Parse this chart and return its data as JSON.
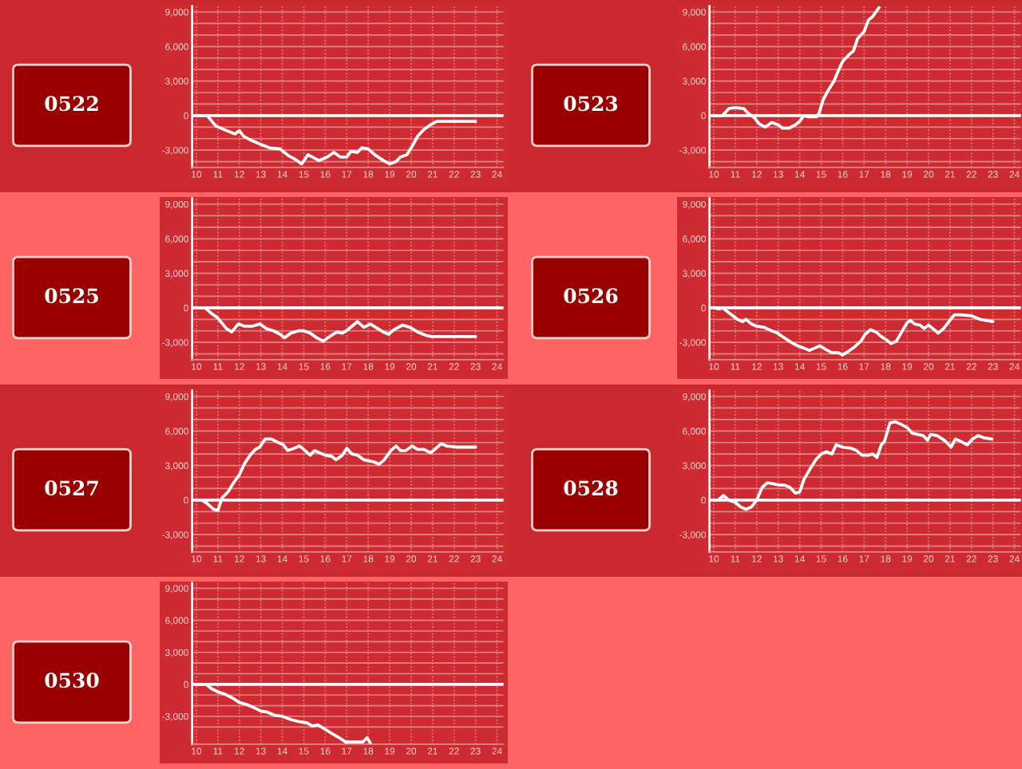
{
  "chart_data": [
    {
      "type": "line",
      "title": "0522",
      "x": [
        10,
        10.5,
        10.9,
        11.4,
        11.8,
        12.0,
        12.2,
        12.5,
        13.0,
        13.4,
        13.9,
        14.3,
        14.6,
        14.9,
        15.2,
        15.4,
        15.7,
        16.1,
        16.4,
        16.7,
        17.0,
        17.2,
        17.5,
        17.7,
        18.0,
        18.3,
        18.7,
        19.0,
        19.3,
        19.5,
        19.8,
        20.1,
        20.3,
        20.6,
        20.9,
        21.2,
        21.8,
        23.0
      ],
      "values": [
        0,
        0,
        -900,
        -1300,
        -1600,
        -1300,
        -1800,
        -2100,
        -2500,
        -2800,
        -2900,
        -3500,
        -3800,
        -4200,
        -3400,
        -3600,
        -3900,
        -3600,
        -3200,
        -3600,
        -3600,
        -3100,
        -3200,
        -2800,
        -2900,
        -3400,
        -3900,
        -4200,
        -4000,
        -3600,
        -3400,
        -2500,
        -1800,
        -1200,
        -800,
        -500,
        -500,
        -500
      ],
      "color": "#ffffff",
      "xlim": [
        9.8,
        24.3
      ],
      "xticks": [
        10,
        11,
        12,
        13,
        14,
        15,
        16,
        17,
        18,
        19,
        20,
        21,
        22,
        23,
        24
      ],
      "ylim": [
        -4500,
        9500
      ],
      "yticks": [
        {
          "value": -4000,
          "label": null
        },
        {
          "value": -3000,
          "label": "-3,000"
        },
        {
          "value": -2000,
          "label": null
        },
        {
          "value": -1000,
          "label": null
        },
        0,
        {
          "value": 1000,
          "label": null
        },
        {
          "value": 2000,
          "label": null
        },
        {
          "value": 3000,
          "label": "3,000"
        },
        {
          "value": 4000,
          "label": null
        },
        {
          "value": 5000,
          "label": null
        },
        {
          "value": 6000,
          "label": "6,000"
        },
        {
          "value": 7000,
          "label": null
        },
        {
          "value": 8000,
          "label": null
        },
        {
          "value": 9000,
          "label": "9,000"
        }
      ],
      "grid": true,
      "ref_lines": [
        {
          "axis": "y",
          "value": 0,
          "color": "#ffffff"
        }
      ]
    },
    {
      "type": "line",
      "title": "0523",
      "x": [
        10,
        10.4,
        10.7,
        11.0,
        11.4,
        11.6,
        11.9,
        12.1,
        12.4,
        12.7,
        13.0,
        13.2,
        13.5,
        13.8,
        14.0,
        14.2,
        14.4,
        14.8,
        14.9,
        15.1,
        15.3,
        15.6,
        15.8,
        16.0,
        16.3,
        16.5,
        16.7,
        17.0,
        17.2,
        17.4,
        17.7
      ],
      "values": [
        0,
        0,
        600,
        700,
        600,
        200,
        -200,
        -700,
        -1000,
        -600,
        -800,
        -1100,
        -1100,
        -800,
        -500,
        0,
        -100,
        -100,
        200,
        1400,
        2100,
        3000,
        3900,
        4700,
        5300,
        5600,
        6700,
        7300,
        8300,
        8600,
        9400
      ],
      "color": "#ffffff",
      "xlim": [
        9.8,
        24.3
      ],
      "xticks": [
        10,
        11,
        12,
        13,
        14,
        15,
        16,
        17,
        18,
        19,
        20,
        21,
        22,
        23,
        24
      ],
      "ylim": [
        -4500,
        9500
      ],
      "yticks": [
        {
          "value": -4000,
          "label": null
        },
        {
          "value": -3000,
          "label": "-3,000"
        },
        {
          "value": -2000,
          "label": null
        },
        {
          "value": -1000,
          "label": null
        },
        0,
        {
          "value": 1000,
          "label": null
        },
        {
          "value": 2000,
          "label": null
        },
        {
          "value": 3000,
          "label": "3,000"
        },
        {
          "value": 4000,
          "label": null
        },
        {
          "value": 5000,
          "label": null
        },
        {
          "value": 6000,
          "label": "6,000"
        },
        {
          "value": 7000,
          "label": null
        },
        {
          "value": 8000,
          "label": null
        },
        {
          "value": 9000,
          "label": "9,000"
        }
      ],
      "grid": true,
      "ref_lines": [
        {
          "axis": "y",
          "value": 0,
          "color": "#ffffff"
        }
      ]
    },
    {
      "type": "line",
      "title": "0525",
      "x": [
        10,
        10.4,
        10.65,
        11.0,
        11.4,
        11.65,
        11.95,
        12.25,
        12.6,
        12.95,
        13.25,
        13.6,
        13.9,
        14.1,
        14.4,
        14.75,
        15.0,
        15.3,
        15.6,
        15.9,
        16.2,
        16.55,
        16.8,
        17.05,
        17.5,
        17.8,
        18.1,
        18.35,
        18.7,
        18.95,
        19.2,
        19.6,
        19.95,
        20.3,
        20.7,
        20.95,
        23.0
      ],
      "values": [
        0,
        0,
        -400,
        -900,
        -1800,
        -2100,
        -1400,
        -1600,
        -1600,
        -1400,
        -1800,
        -2000,
        -2300,
        -2600,
        -2200,
        -2000,
        -2000,
        -2200,
        -2600,
        -2900,
        -2500,
        -2100,
        -2200,
        -1900,
        -1200,
        -1700,
        -1400,
        -1700,
        -2100,
        -2300,
        -1900,
        -1500,
        -1700,
        -2100,
        -2400,
        -2500,
        -2500
      ],
      "color": "#ffffff",
      "xlim": [
        9.8,
        24.3
      ],
      "xticks": [
        10,
        11,
        12,
        13,
        14,
        15,
        16,
        17,
        18,
        19,
        20,
        21,
        22,
        23,
        24
      ],
      "ylim": [
        -4500,
        9500
      ],
      "yticks": [
        {
          "value": -4000,
          "label": null
        },
        {
          "value": -3000,
          "label": "-3,000"
        },
        {
          "value": -2000,
          "label": null
        },
        {
          "value": -1000,
          "label": null
        },
        0,
        {
          "value": 1000,
          "label": null
        },
        {
          "value": 2000,
          "label": null
        },
        {
          "value": 3000,
          "label": "3,000"
        },
        {
          "value": 4000,
          "label": null
        },
        {
          "value": 5000,
          "label": null
        },
        {
          "value": 6000,
          "label": "6,000"
        },
        {
          "value": 7000,
          "label": null
        },
        {
          "value": 8000,
          "label": null
        },
        {
          "value": 9000,
          "label": "9,000"
        }
      ],
      "grid": true,
      "ref_lines": [
        {
          "axis": "y",
          "value": 0,
          "color": "#ffffff"
        }
      ]
    },
    {
      "type": "line",
      "title": "0526",
      "x": [
        10,
        10.25,
        10.4,
        10.75,
        11.1,
        11.35,
        11.5,
        11.75,
        12.0,
        12.35,
        12.7,
        12.97,
        13.2,
        13.6,
        13.9,
        14.2,
        14.45,
        14.7,
        14.95,
        15.2,
        15.5,
        15.8,
        16.0,
        16.25,
        16.55,
        16.85,
        17.05,
        17.3,
        17.55,
        17.8,
        18.05,
        18.25,
        18.5,
        18.75,
        19.0,
        19.15,
        19.35,
        19.6,
        19.8,
        20.0,
        20.2,
        20.45,
        20.7,
        20.95,
        21.2,
        21.5,
        22.0,
        22.4,
        23.0
      ],
      "values": [
        0,
        -100,
        0,
        -500,
        -1000,
        -1200,
        -1000,
        -1400,
        -1600,
        -1700,
        -2000,
        -2200,
        -2500,
        -3000,
        -3300,
        -3500,
        -3700,
        -3500,
        -3300,
        -3600,
        -3900,
        -3900,
        -4100,
        -3800,
        -3400,
        -2900,
        -2300,
        -1900,
        -2100,
        -2500,
        -2800,
        -3100,
        -2900,
        -2100,
        -1300,
        -1100,
        -1400,
        -1500,
        -1800,
        -1500,
        -1800,
        -2200,
        -1800,
        -1200,
        -600,
        -600,
        -700,
        -1000,
        -1200
      ],
      "color": "#ffffff",
      "xlim": [
        9.8,
        24.3
      ],
      "xticks": [
        10,
        11,
        12,
        13,
        14,
        15,
        16,
        17,
        18,
        19,
        20,
        21,
        22,
        23,
        24
      ],
      "ylim": [
        -4500,
        9500
      ],
      "yticks": [
        {
          "value": -4000,
          "label": null
        },
        {
          "value": -3000,
          "label": "-3,000"
        },
        {
          "value": -2000,
          "label": null
        },
        {
          "value": -1000,
          "label": null
        },
        0,
        {
          "value": 1000,
          "label": null
        },
        {
          "value": 2000,
          "label": null
        },
        {
          "value": 3000,
          "label": "3,000"
        },
        {
          "value": 4000,
          "label": null
        },
        {
          "value": 5000,
          "label": null
        },
        {
          "value": 6000,
          "label": "6,000"
        },
        {
          "value": 7000,
          "label": null
        },
        {
          "value": 8000,
          "label": null
        },
        {
          "value": 9000,
          "label": "9,000"
        }
      ],
      "grid": true,
      "ref_lines": [
        {
          "axis": "y",
          "value": 0,
          "color": "#ffffff"
        }
      ]
    },
    {
      "type": "line",
      "title": "0527",
      "x": [
        10,
        10.25,
        10.5,
        10.8,
        11.0,
        11.2,
        11.47,
        11.73,
        12.0,
        12.25,
        12.5,
        12.75,
        12.95,
        13.2,
        13.5,
        13.7,
        14.05,
        14.25,
        14.55,
        14.8,
        15.0,
        15.3,
        15.5,
        15.75,
        16.0,
        16.3,
        16.5,
        16.8,
        17.0,
        17.25,
        17.5,
        17.8,
        18.05,
        18.3,
        18.5,
        18.75,
        19.05,
        19.3,
        19.5,
        19.75,
        20.05,
        20.3,
        20.6,
        20.9,
        21.1,
        21.4,
        21.65,
        22.1,
        23.0
      ],
      "values": [
        0,
        0,
        -300,
        -800,
        -900,
        200,
        700,
        1500,
        2200,
        3200,
        3900,
        4400,
        4600,
        5300,
        5300,
        5100,
        4800,
        4300,
        4500,
        4700,
        4400,
        3900,
        4300,
        4100,
        3900,
        3800,
        3500,
        3900,
        4500,
        4000,
        3900,
        3500,
        3400,
        3300,
        3100,
        3500,
        4300,
        4700,
        4300,
        4300,
        4700,
        4400,
        4400,
        4100,
        4400,
        4900,
        4700,
        4600,
        4600
      ],
      "color": "#ffffff",
      "xlim": [
        9.8,
        24.3
      ],
      "xticks": [
        10,
        11,
        12,
        13,
        14,
        15,
        16,
        17,
        18,
        19,
        20,
        21,
        22,
        23,
        24
      ],
      "ylim": [
        -4500,
        9500
      ],
      "yticks": [
        {
          "value": -4000,
          "label": null
        },
        {
          "value": -3000,
          "label": "-3,000"
        },
        {
          "value": -2000,
          "label": null
        },
        {
          "value": -1000,
          "label": null
        },
        0,
        {
          "value": 1000,
          "label": null
        },
        {
          "value": 2000,
          "label": null
        },
        {
          "value": 3000,
          "label": "3,000"
        },
        {
          "value": 4000,
          "label": null
        },
        {
          "value": 5000,
          "label": null
        },
        {
          "value": 6000,
          "label": "6,000"
        },
        {
          "value": 7000,
          "label": null
        },
        {
          "value": 8000,
          "label": null
        },
        {
          "value": 9000,
          "label": "9,000"
        }
      ],
      "grid": true,
      "ref_lines": [
        {
          "axis": "y",
          "value": 0,
          "color": "#ffffff"
        }
      ]
    },
    {
      "type": "line",
      "title": "0528",
      "x": [
        10,
        10.2,
        10.45,
        10.7,
        11.0,
        11.25,
        11.5,
        11.75,
        12.0,
        12.25,
        12.5,
        12.8,
        13.05,
        13.3,
        13.55,
        13.8,
        14.0,
        14.2,
        14.45,
        14.75,
        15.0,
        15.25,
        15.5,
        15.7,
        16.0,
        16.4,
        16.65,
        16.9,
        17.2,
        17.4,
        17.6,
        17.8,
        17.95,
        18.2,
        18.45,
        18.7,
        19.0,
        19.25,
        19.5,
        19.75,
        19.95,
        20.1,
        20.4,
        20.65,
        20.8,
        21.05,
        21.25,
        21.5,
        21.8,
        22.05,
        22.3,
        22.6,
        22.95
      ],
      "values": [
        0,
        0,
        400,
        0,
        -200,
        -600,
        -800,
        -600,
        0,
        1100,
        1500,
        1400,
        1300,
        1300,
        1100,
        600,
        700,
        1800,
        2600,
        3500,
        4000,
        4200,
        4000,
        4800,
        4600,
        4500,
        4300,
        3900,
        3900,
        4000,
        3700,
        4800,
        5100,
        6700,
        6800,
        6600,
        6300,
        5800,
        5700,
        5600,
        5200,
        5700,
        5600,
        5300,
        5100,
        4600,
        5300,
        5100,
        4800,
        5300,
        5600,
        5400,
        5300
      ],
      "color": "#ffffff",
      "xlim": [
        9.8,
        24.3
      ],
      "xticks": [
        10,
        11,
        12,
        13,
        14,
        15,
        16,
        17,
        18,
        19,
        20,
        21,
        22,
        23,
        24
      ],
      "ylim": [
        -4500,
        9500
      ],
      "yticks": [
        {
          "value": -4000,
          "label": null
        },
        {
          "value": -3000,
          "label": "-3,000"
        },
        {
          "value": -2000,
          "label": null
        },
        {
          "value": -1000,
          "label": null
        },
        0,
        {
          "value": 1000,
          "label": null
        },
        {
          "value": 2000,
          "label": null
        },
        {
          "value": 3000,
          "label": "3,000"
        },
        {
          "value": 4000,
          "label": null
        },
        {
          "value": 5000,
          "label": null
        },
        {
          "value": 6000,
          "label": "6,000"
        },
        {
          "value": 7000,
          "label": null
        },
        {
          "value": 8000,
          "label": null
        },
        {
          "value": 9000,
          "label": "9,000"
        }
      ],
      "grid": true,
      "ref_lines": [
        {
          "axis": "y",
          "value": 0,
          "color": "#ffffff"
        }
      ]
    },
    {
      "type": "line",
      "title": "0530",
      "x": [
        10,
        10.45,
        10.7,
        11.0,
        11.3,
        11.7,
        12.0,
        12.35,
        12.7,
        13.0,
        13.3,
        13.65,
        14.0,
        14.4,
        14.8,
        15.15,
        15.4,
        15.65,
        15.9,
        16.3,
        16.65,
        16.95,
        17.4,
        17.75,
        17.95,
        18.1
      ],
      "values": [
        0,
        0,
        -400,
        -700,
        -900,
        -1300,
        -1700,
        -1900,
        -2200,
        -2500,
        -2600,
        -2900,
        -3000,
        -3300,
        -3500,
        -3600,
        -3900,
        -3800,
        -4100,
        -4600,
        -5000,
        -5400,
        -5400,
        -5400,
        -5000,
        -5500
      ],
      "color": "#ffffff",
      "xlim": [
        9.8,
        24.3
      ],
      "xticks": [
        10,
        11,
        12,
        13,
        14,
        15,
        16,
        17,
        18,
        19,
        20,
        21,
        22,
        23,
        24
      ],
      "ylim": [
        -5600,
        9500
      ],
      "yticks": [
        {
          "value": -4000,
          "label": null
        },
        {
          "value": -3000,
          "label": "-3,000"
        },
        {
          "value": -2000,
          "label": null
        },
        {
          "value": -1000,
          "label": null
        },
        0,
        {
          "value": 1000,
          "label": null
        },
        {
          "value": 2000,
          "label": null
        },
        {
          "value": 3000,
          "label": "3,000"
        },
        {
          "value": 4000,
          "label": null
        },
        {
          "value": 5000,
          "label": null
        },
        {
          "value": 6000,
          "label": "6,000"
        },
        {
          "value": 7000,
          "label": null
        },
        {
          "value": 8000,
          "label": null
        },
        {
          "value": 9000,
          "label": "9,000"
        }
      ],
      "grid": true,
      "ref_lines": [
        {
          "axis": "y",
          "value": 0,
          "color": "#ffffff"
        }
      ]
    }
  ]
}
